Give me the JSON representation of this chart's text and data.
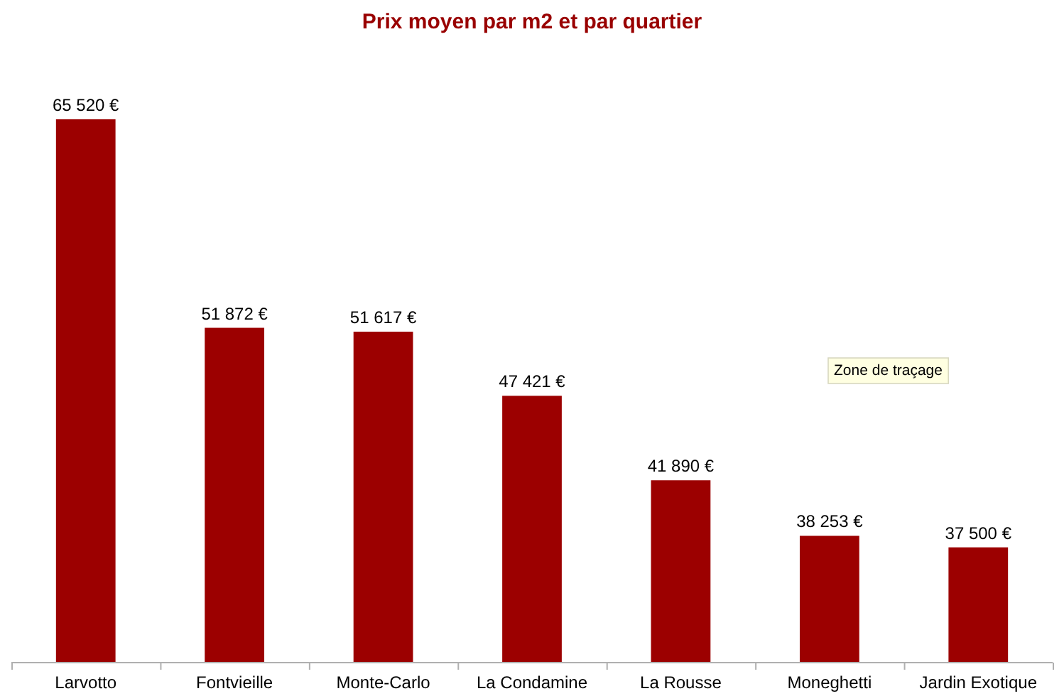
{
  "chart_data": {
    "type": "bar",
    "title": "Prix moyen par m2 et par quartier",
    "categories": [
      "Larvotto",
      "Fontvieille",
      "Monte-Carlo",
      "La Condamine",
      "La Rousse",
      "Moneghetti",
      "Jardin Exotique"
    ],
    "values": [
      65520,
      51872,
      51617,
      47421,
      41890,
      38253,
      37500
    ],
    "value_labels": [
      "65 520 €",
      "51 872 €",
      "51 617 €",
      "47 421 €",
      "41 890 €",
      "38 253 €",
      "37 500 €"
    ],
    "color": "#9c0000",
    "ylim": [
      30000,
      65520
    ],
    "tick_labels": "x",
    "annotations": [
      "Zone de traçage"
    ]
  }
}
